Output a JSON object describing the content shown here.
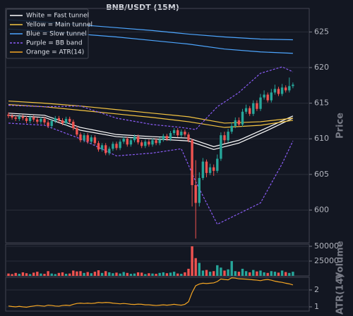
{
  "chart_data": [
    {
      "type": "candlestick",
      "title": "BNB/USDT (15M)",
      "ylabel": "Price",
      "ylim": [
        595.4,
        628.3
      ],
      "yticks": [
        600,
        605,
        610,
        615,
        620,
        625
      ],
      "grid": true,
      "up_color": "#26a69a",
      "down_color": "#ef5350",
      "legend": "upper left",
      "open": [
        613.4,
        613.2,
        613.0,
        612.8,
        613.1,
        612.9,
        612.5,
        613.0,
        612.7,
        612.4,
        612.8,
        612.3,
        611.8,
        612.5,
        612.9,
        612.6,
        612.2,
        612.8,
        612.4,
        611.5,
        610.6,
        609.8,
        610.5,
        609.6,
        610.2,
        609.4,
        608.5,
        609.1,
        608.0,
        608.6,
        609.3,
        608.7,
        609.6,
        610.0,
        609.2,
        609.8,
        610.3,
        609.5,
        609.0,
        609.6,
        609.2,
        609.8,
        609.4,
        609.9,
        610.4,
        610.0,
        610.8,
        611.2,
        610.5,
        611.0,
        610.6,
        609.8,
        603.5,
        601.0,
        604.5,
        606.8,
        605.2,
        606.0,
        605.5,
        607.2,
        610.5,
        609.8,
        611.0,
        611.8,
        612.6,
        612.0,
        613.8,
        614.3,
        613.5,
        615.0,
        614.2,
        615.8,
        616.2,
        615.4,
        616.5,
        617.0,
        616.3,
        617.2,
        616.8,
        617.4
      ],
      "high": [
        613.7,
        613.5,
        613.3,
        613.4,
        613.4,
        613.2,
        613.3,
        613.3,
        613.0,
        613.1,
        613.1,
        612.6,
        612.8,
        613.2,
        613.2,
        612.9,
        613.1,
        613.1,
        612.7,
        611.8,
        610.9,
        610.8,
        610.8,
        610.5,
        610.5,
        609.7,
        609.4,
        609.4,
        608.9,
        609.6,
        609.6,
        609.9,
        610.3,
        610.3,
        610.1,
        610.6,
        610.6,
        609.8,
        609.9,
        609.9,
        610.1,
        610.1,
        610.2,
        610.7,
        610.7,
        611.1,
        611.5,
        611.5,
        611.3,
        611.3,
        610.9,
        610.0,
        607.0,
        605.3,
        607.3,
        607.1,
        606.5,
        606.4,
        607.8,
        610.9,
        611.0,
        611.4,
        612.3,
        613.0,
        613.0,
        614.2,
        614.8,
        614.6,
        615.4,
        615.4,
        616.3,
        616.8,
        616.5,
        617.0,
        617.6,
        617.3,
        617.7,
        617.5,
        618.6,
        617.9
      ],
      "low": [
        612.9,
        612.7,
        612.5,
        612.5,
        612.6,
        612.2,
        612.2,
        612.4,
        612.1,
        612.1,
        612.0,
        611.5,
        611.5,
        612.2,
        612.3,
        611.9,
        611.9,
        612.1,
        611.2,
        610.3,
        609.5,
        609.5,
        609.3,
        609.3,
        609.1,
        608.2,
        608.2,
        607.7,
        607.7,
        608.3,
        608.4,
        608.4,
        609.3,
        608.9,
        608.9,
        609.5,
        609.2,
        608.7,
        608.7,
        608.9,
        608.9,
        609.1,
        609.1,
        609.6,
        609.7,
        609.7,
        610.5,
        610.2,
        610.2,
        610.3,
        609.5,
        600.5,
        596.0,
        600.5,
        604.2,
        604.6,
        604.9,
        604.8,
        605.2,
        606.9,
        609.3,
        609.5,
        610.7,
        611.5,
        611.7,
        611.7,
        613.5,
        613.2,
        613.2,
        613.9,
        613.9,
        615.5,
        615.1,
        615.1,
        616.2,
        616.0,
        616.0,
        616.5,
        616.5,
        617.1
      ],
      "close": [
        613.2,
        613.0,
        612.8,
        613.1,
        612.9,
        612.5,
        613.0,
        612.7,
        612.4,
        612.8,
        612.3,
        611.8,
        612.5,
        612.9,
        612.6,
        612.2,
        612.8,
        612.4,
        611.5,
        610.6,
        609.8,
        610.5,
        609.6,
        610.2,
        609.4,
        608.5,
        609.1,
        608.0,
        608.6,
        609.3,
        608.7,
        609.6,
        610.0,
        609.2,
        609.8,
        610.3,
        609.5,
        609.0,
        609.6,
        609.2,
        609.8,
        609.4,
        609.9,
        610.4,
        610.0,
        610.8,
        611.2,
        610.5,
        611.0,
        610.6,
        609.8,
        603.5,
        601.0,
        604.5,
        606.8,
        605.2,
        606.0,
        605.5,
        607.2,
        610.5,
        609.8,
        611.0,
        611.8,
        612.6,
        612.0,
        613.8,
        614.3,
        613.5,
        615.0,
        614.2,
        615.8,
        616.2,
        615.4,
        616.5,
        617.0,
        616.3,
        617.2,
        616.8,
        617.4,
        617.6
      ],
      "series": [
        {
          "name": "White = Fast tunnel",
          "color": "#ffffff",
          "style": "solid",
          "lines": [
            {
              "x": [
                0,
                10,
                20,
                30,
                40,
                50,
                57,
                64,
                72,
                79
              ],
              "values": [
                613.6,
                613.3,
                611.6,
                610.6,
                610.3,
                610.1,
                608.9,
                609.8,
                611.6,
                613.2
              ]
            },
            {
              "x": [
                0,
                10,
                20,
                30,
                40,
                50,
                57,
                64,
                72,
                79
              ],
              "values": [
                613.3,
                613.0,
                611.2,
                610.3,
                610.0,
                609.7,
                608.5,
                609.4,
                611.2,
                612.9
              ]
            }
          ]
        },
        {
          "name": "Yellow = Main tunnel",
          "color": "#f5c542",
          "style": "solid",
          "lines": [
            {
              "x": [
                0,
                10,
                20,
                30,
                40,
                50,
                60,
                70,
                79
              ],
              "values": [
                615.3,
                615.0,
                614.6,
                614.1,
                613.6,
                613.1,
                612.2,
                612.4,
                612.9
              ]
            },
            {
              "x": [
                0,
                10,
                20,
                30,
                40,
                50,
                60,
                70,
                79
              ],
              "values": [
                614.8,
                614.5,
                614.0,
                613.5,
                613.0,
                612.4,
                611.6,
                611.9,
                612.6
              ]
            }
          ]
        },
        {
          "name": "Blue = Slow tunnel",
          "color": "#4da6ff",
          "style": "solid",
          "lines": [
            {
              "x": [
                0,
                10,
                20,
                30,
                40,
                50,
                60,
                70,
                79
              ],
              "values": [
                626.7,
                626.4,
                626.0,
                625.6,
                625.2,
                624.7,
                624.3,
                624.0,
                623.9
              ]
            },
            {
              "x": [
                0,
                10,
                20,
                30,
                40,
                50,
                60,
                70,
                79
              ],
              "values": [
                625.4,
                625.1,
                624.7,
                624.3,
                623.8,
                623.3,
                622.6,
                622.2,
                622.0
              ]
            }
          ]
        },
        {
          "name": "Purple = BB band",
          "color": "#8a5cf6",
          "style": "dashed",
          "lines": [
            {
              "x": [
                0,
                10,
                20,
                30,
                40,
                48,
                52,
                58,
                64,
                70,
                76,
                79
              ],
              "values": [
                614.7,
                614.5,
                614.6,
                612.9,
                612.0,
                611.6,
                611.3,
                614.5,
                616.5,
                619.2,
                620.1,
                619.4
              ]
            },
            {
              "x": [
                0,
                10,
                20,
                30,
                40,
                48,
                52,
                58,
                64,
                70,
                76,
                79
              ],
              "values": [
                612.2,
                611.9,
                610.0,
                607.6,
                608.0,
                608.6,
                604.0,
                598.0,
                599.5,
                601.0,
                606.5,
                609.7
              ]
            }
          ]
        }
      ]
    },
    {
      "type": "bar",
      "ylabel": "Volume",
      "ylim": [
        0,
        53500
      ],
      "grid": true,
      "yticks": [
        25000,
        50000
      ],
      "values": [
        4000,
        3000,
        5000,
        3500,
        6000,
        4500,
        3000,
        5500,
        7000,
        4000,
        3500,
        8000,
        4000,
        3000,
        5000,
        6000,
        3500,
        4000,
        9000,
        7500,
        8000,
        5000,
        6500,
        4500,
        7000,
        9500,
        5000,
        8000,
        6000,
        4500,
        5500,
        4000,
        6500,
        5000,
        3500,
        4000,
        6000,
        5500,
        3000,
        4500,
        4000,
        3500,
        5000,
        6000,
        4500,
        5500,
        7000,
        4000,
        3500,
        6000,
        12000,
        50000,
        30000,
        22000,
        9000,
        10000,
        7000,
        8000,
        18000,
        14000,
        9000,
        11000,
        25000,
        8000,
        7000,
        12000,
        8000,
        6000,
        10000,
        7500,
        9000,
        6000,
        5000,
        8000,
        7000,
        5500,
        9000,
        6500,
        5000,
        7000
      ]
    },
    {
      "type": "line",
      "ylabel": "ATR(14)",
      "ylim": [
        0.75,
        2.75
      ],
      "yticks": [
        1,
        2
      ],
      "grid": true,
      "series": [
        {
          "name": "Orange = ATR(14)",
          "color": "#f5a623",
          "values": [
            1.05,
            1.02,
            1.0,
            1.03,
            1.0,
            0.98,
            1.02,
            1.05,
            1.08,
            1.06,
            1.04,
            1.1,
            1.08,
            1.05,
            1.04,
            1.08,
            1.1,
            1.08,
            1.15,
            1.2,
            1.22,
            1.2,
            1.22,
            1.2,
            1.22,
            1.26,
            1.24,
            1.26,
            1.25,
            1.22,
            1.2,
            1.18,
            1.2,
            1.18,
            1.15,
            1.14,
            1.16,
            1.15,
            1.12,
            1.12,
            1.1,
            1.08,
            1.1,
            1.12,
            1.1,
            1.12,
            1.15,
            1.12,
            1.1,
            1.15,
            1.3,
            1.85,
            2.25,
            2.35,
            2.4,
            2.38,
            2.4,
            2.42,
            2.5,
            2.65,
            2.62,
            2.6,
            2.72,
            2.7,
            2.66,
            2.65,
            2.64,
            2.62,
            2.6,
            2.58,
            2.55,
            2.6,
            2.62,
            2.58,
            2.52,
            2.48,
            2.45,
            2.4,
            2.36,
            2.3
          ]
        }
      ]
    }
  ]
}
